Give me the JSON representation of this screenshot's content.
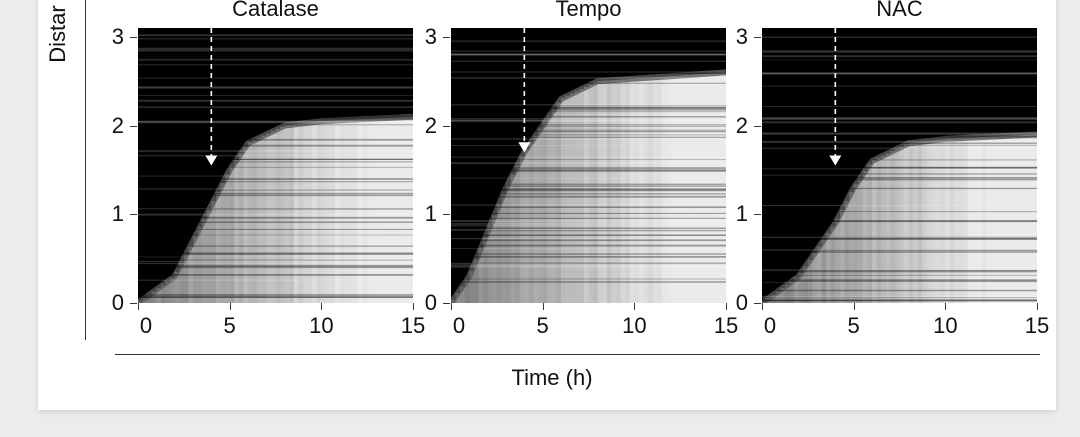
{
  "ylabel": "Distar",
  "xlabel": "Time (h)",
  "colors": {
    "background": "#000000",
    "signal": "#ffffff",
    "arrow": "#ffffff"
  },
  "chart_data": [
    {
      "type": "heatmap",
      "title": "Catalase",
      "xlabel": "Time (h)",
      "ylabel": "Distar",
      "xlim": [
        0,
        15
      ],
      "ylim": [
        0,
        3.1
      ],
      "x_ticks": [
        "0",
        "5",
        "10",
        "15"
      ],
      "y_ticks": [
        "0",
        "1",
        "2",
        "3"
      ],
      "front": [
        {
          "t": 0,
          "d": 0.0
        },
        {
          "t": 2,
          "d": 0.3
        },
        {
          "t": 3,
          "d": 0.7
        },
        {
          "t": 4,
          "d": 1.1
        },
        {
          "t": 5,
          "d": 1.5
        },
        {
          "t": 6,
          "d": 1.8
        },
        {
          "t": 8,
          "d": 2.0
        },
        {
          "t": 10,
          "d": 2.05
        },
        {
          "t": 15,
          "d": 2.1
        }
      ],
      "arrow_time": 4
    },
    {
      "type": "heatmap",
      "title": "Tempo",
      "xlabel": "Time (h)",
      "ylabel": "Distar",
      "xlim": [
        0,
        15
      ],
      "ylim": [
        0,
        3.1
      ],
      "x_ticks": [
        "0",
        "5",
        "10",
        "15"
      ],
      "y_ticks": [
        "0",
        "1",
        "2",
        "3"
      ],
      "front": [
        {
          "t": 0,
          "d": 0.0
        },
        {
          "t": 1,
          "d": 0.3
        },
        {
          "t": 2,
          "d": 0.8
        },
        {
          "t": 3,
          "d": 1.3
        },
        {
          "t": 4,
          "d": 1.7
        },
        {
          "t": 5,
          "d": 2.0
        },
        {
          "t": 6,
          "d": 2.3
        },
        {
          "t": 8,
          "d": 2.5
        },
        {
          "t": 15,
          "d": 2.6
        }
      ],
      "arrow_time": 4
    },
    {
      "type": "heatmap",
      "title": "NAC",
      "xlabel": "Time (h)",
      "ylabel": "Distar",
      "xlim": [
        0,
        15
      ],
      "ylim": [
        0,
        3.1
      ],
      "x_ticks": [
        "0",
        "5",
        "10",
        "15"
      ],
      "y_ticks": [
        "0",
        "1",
        "2",
        "3"
      ],
      "front": [
        {
          "t": 0,
          "d": 0.0
        },
        {
          "t": 2,
          "d": 0.3
        },
        {
          "t": 3,
          "d": 0.6
        },
        {
          "t": 4,
          "d": 0.9
        },
        {
          "t": 5,
          "d": 1.3
        },
        {
          "t": 6,
          "d": 1.6
        },
        {
          "t": 8,
          "d": 1.8
        },
        {
          "t": 10,
          "d": 1.85
        },
        {
          "t": 15,
          "d": 1.9
        }
      ],
      "arrow_time": 4
    }
  ]
}
